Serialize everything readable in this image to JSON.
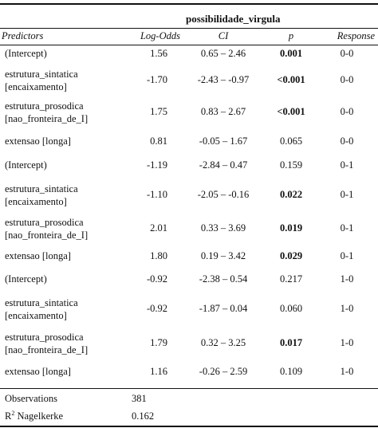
{
  "table": {
    "dependent_variable": "possibilidade_virgula",
    "headers": {
      "predictors": "Predictors",
      "log_odds": "Log-Odds",
      "ci": "CI",
      "p": "p",
      "response": "Response"
    },
    "rows": [
      {
        "predictor": [
          "(Intercept)"
        ],
        "log_odds": "1.56",
        "ci": "0.65 – 2.46",
        "p": "0.001",
        "p_bold": true,
        "response": "0-0"
      },
      {
        "predictor": [
          "estrutura_sintatica",
          "[encaixamento]"
        ],
        "log_odds": "-1.70",
        "ci": "-2.43 – -0.97",
        "p": "<0.001",
        "p_bold": true,
        "response": "0-0"
      },
      {
        "predictor": [
          "estrutura_prosodica",
          "[nao_fronteira_de_I]"
        ],
        "log_odds": "1.75",
        "ci": "0.83 – 2.67",
        "p": "<0.001",
        "p_bold": true,
        "response": "0-0"
      },
      {
        "predictor": [
          "extensao [longa]"
        ],
        "log_odds": "0.81",
        "ci": "-0.05 – 1.67",
        "p": "0.065",
        "p_bold": false,
        "response": "0-0"
      },
      {
        "predictor": [
          "(Intercept)"
        ],
        "log_odds": "-1.19",
        "ci": "-2.84 – 0.47",
        "p": "0.159",
        "p_bold": false,
        "response": "0-1"
      },
      {
        "predictor": [
          "estrutura_sintatica",
          "[encaixamento]"
        ],
        "log_odds": "-1.10",
        "ci": "-2.05 – -0.16",
        "p": "0.022",
        "p_bold": true,
        "response": "0-1"
      },
      {
        "predictor": [
          "estrutura_prosodica",
          "[nao_fronteira_de_I]"
        ],
        "log_odds": "2.01",
        "ci": "0.33 – 3.69",
        "p": "0.019",
        "p_bold": true,
        "response": "0-1"
      },
      {
        "predictor": [
          "extensao [longa]"
        ],
        "log_odds": "1.80",
        "ci": "0.19 – 3.42",
        "p": "0.029",
        "p_bold": true,
        "response": "0-1"
      },
      {
        "predictor": [
          "(Intercept)"
        ],
        "log_odds": "-0.92",
        "ci": "-2.38 – 0.54",
        "p": "0.217",
        "p_bold": false,
        "response": "1-0"
      },
      {
        "predictor": [
          "estrutura_sintatica",
          "[encaixamento]"
        ],
        "log_odds": "-0.92",
        "ci": "-1.87 – 0.04",
        "p": "0.060",
        "p_bold": false,
        "response": "1-0"
      },
      {
        "predictor": [
          "estrutura_prosodica",
          "[nao_fronteira_de_I]"
        ],
        "log_odds": "1.79",
        "ci": "0.32 – 3.25",
        "p": "0.017",
        "p_bold": true,
        "response": "1-0"
      },
      {
        "predictor": [
          "extensao [longa]"
        ],
        "log_odds": "1.16",
        "ci": "-0.26 – 2.59",
        "p": "0.109",
        "p_bold": false,
        "response": "1-0"
      }
    ],
    "footer": {
      "observations_label": "Observations",
      "observations_value": "381",
      "r2_label_main": "R",
      "r2_label_sup": "2",
      "r2_label_rest": " Nagelkerke",
      "r2_value": "0.162"
    }
  }
}
